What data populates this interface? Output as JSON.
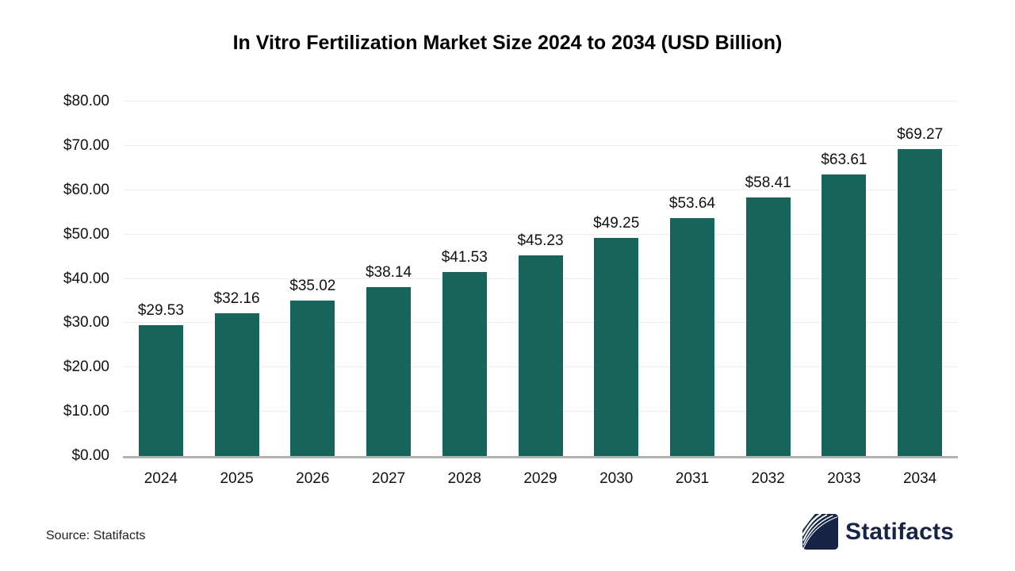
{
  "title": "In Vitro Fertilization Market Size 2024 to 2034 (USD Billion)",
  "source": {
    "label": "Source: Statifacts"
  },
  "logo": {
    "text": "Statifacts",
    "icon": "statifacts-waves-icon"
  },
  "colors": {
    "bar": "#17655a",
    "grid": "#ededed",
    "axis": "#b1b1b1",
    "title": "#000000",
    "logo_navy": "#172445",
    "background": "#ffffff"
  },
  "chart_data": {
    "type": "bar",
    "title": "In Vitro Fertilization Market Size 2024 to 2034 (USD Billion)",
    "categories": [
      "2024",
      "2025",
      "2026",
      "2027",
      "2028",
      "2029",
      "2030",
      "2031",
      "2032",
      "2033",
      "2034"
    ],
    "values": [
      29.53,
      32.16,
      35.02,
      38.14,
      41.53,
      45.23,
      49.25,
      53.64,
      58.41,
      63.61,
      69.27
    ],
    "data_labels": [
      "$29.53",
      "$32.16",
      "$35.02",
      "$38.14",
      "$41.53",
      "$45.23",
      "$49.25",
      "$53.64",
      "$58.41",
      "$63.61",
      "$69.27"
    ],
    "xlabel": "",
    "ylabel": "",
    "ylim": [
      0,
      80
    ],
    "ytick_values": [
      0,
      10,
      20,
      30,
      40,
      50,
      60,
      70,
      80
    ],
    "ytick_labels": [
      "$0.00",
      "$10.00",
      "$20.00",
      "$30.00",
      "$40.00",
      "$50.00",
      "$60.00",
      "$70.00",
      "$80.00"
    ],
    "grid": true,
    "legend": false
  }
}
